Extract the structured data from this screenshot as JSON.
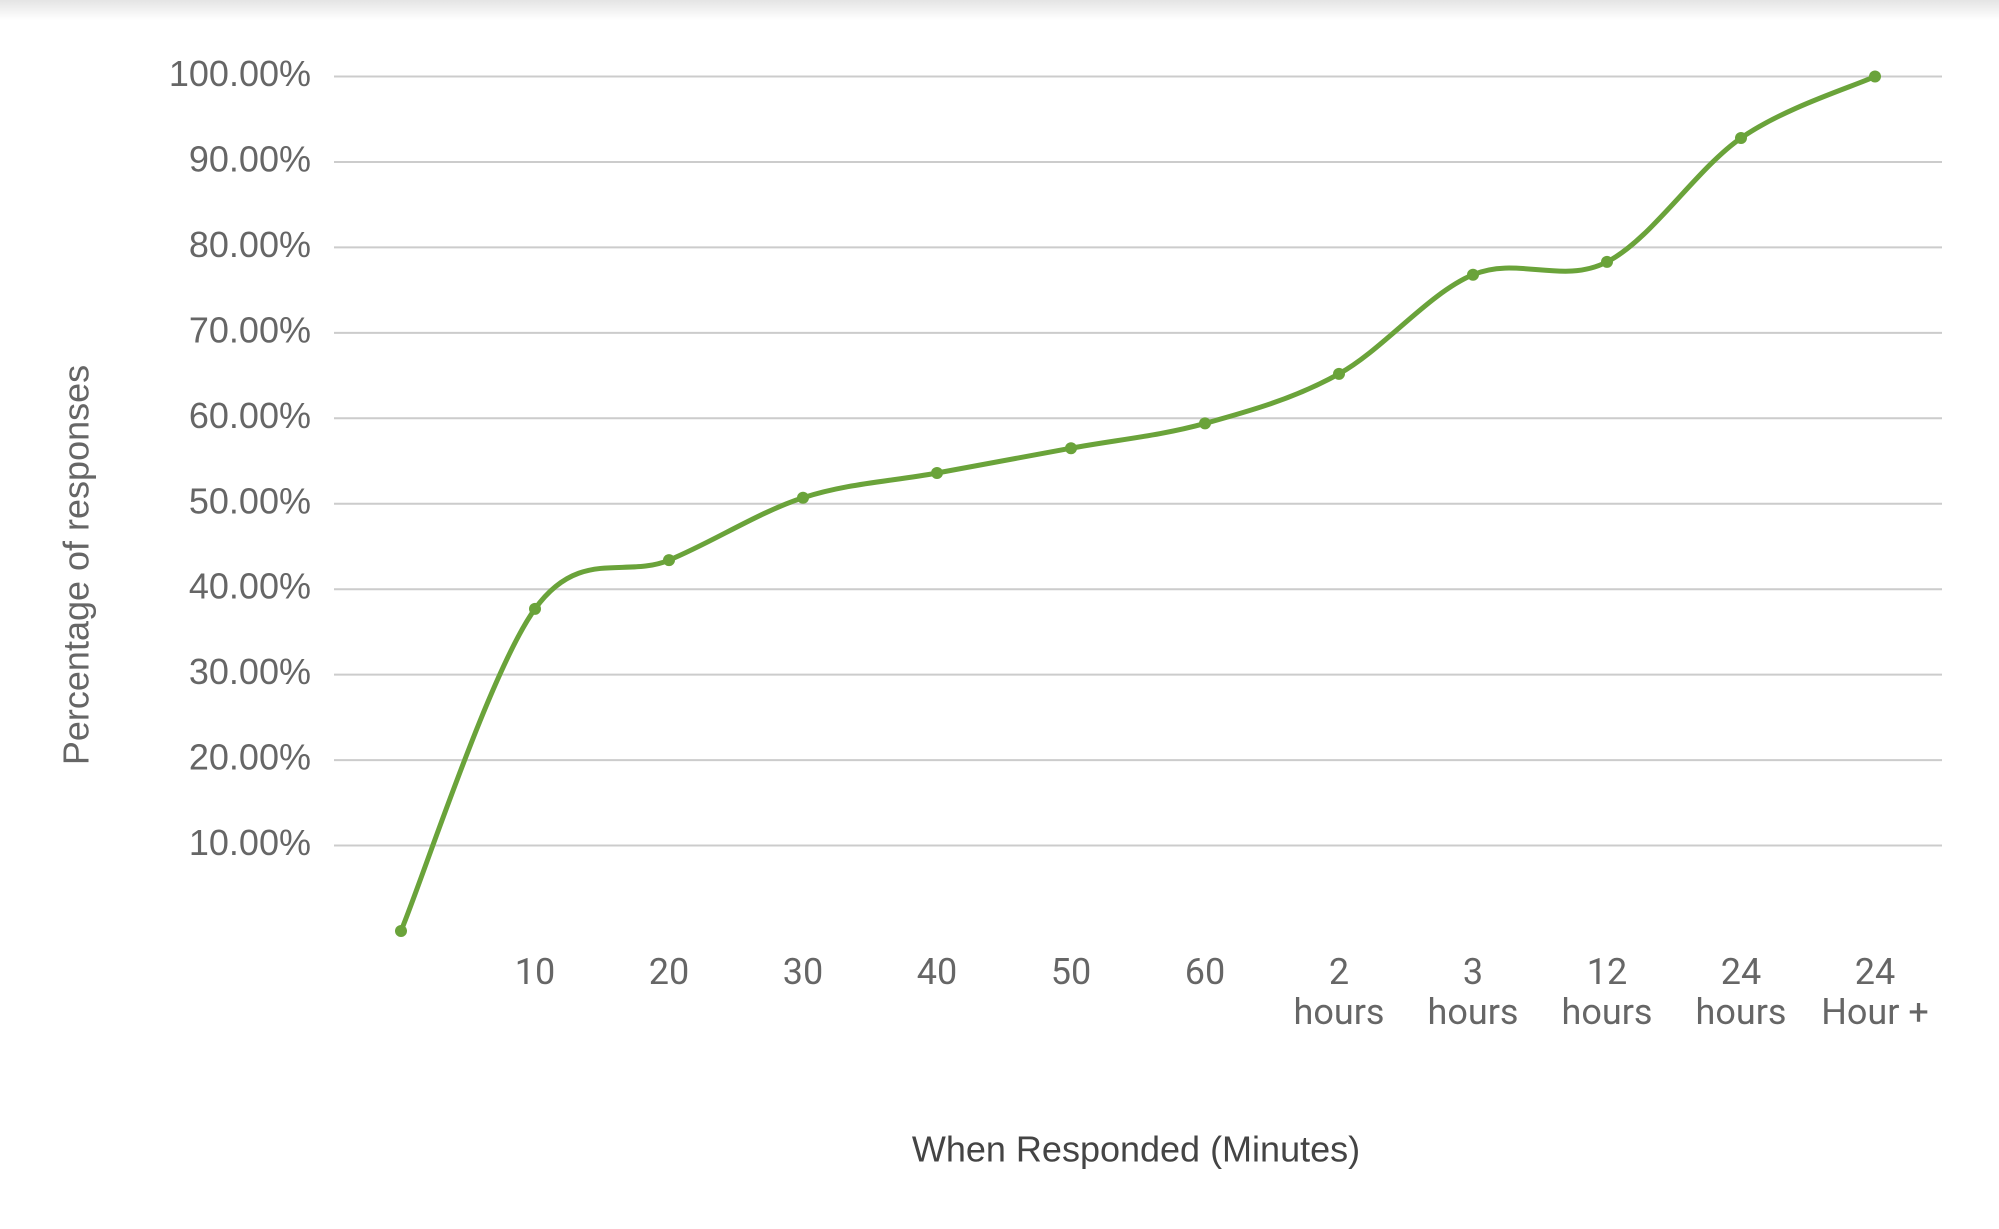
{
  "chart_data": {
    "type": "line",
    "x_label": "When Responded (Minutes)",
    "y_label": "Percentage of responses",
    "categories": [
      null,
      "10",
      "20",
      "30",
      "40",
      "50",
      "60",
      "2 hours",
      "3 hours",
      "12 hours",
      "24 hours",
      "24 Hour +"
    ],
    "series": [
      {
        "color": "#6aa33a",
        "values": [
          0,
          37.7,
          43.4,
          50.7,
          53.6,
          56.5,
          59.4,
          65.2,
          76.8,
          78.3,
          92.8,
          100
        ]
      }
    ],
    "ylim": [
      0,
      100
    ],
    "yticks": [
      {
        "value": 10,
        "label": "10.00%"
      },
      {
        "value": 20,
        "label": "20.00%"
      },
      {
        "value": 30,
        "label": "30.00%"
      },
      {
        "value": 40,
        "label": "40.00%"
      },
      {
        "value": 50,
        "label": "50.00%"
      },
      {
        "value": 60,
        "label": "60.00%"
      },
      {
        "value": 70,
        "label": "70.00%"
      },
      {
        "value": 80,
        "label": "80.00%"
      },
      {
        "value": 90,
        "label": "90.00%"
      },
      {
        "value": 100,
        "label": "100.00%"
      }
    ],
    "grid": true,
    "smooth": true
  }
}
